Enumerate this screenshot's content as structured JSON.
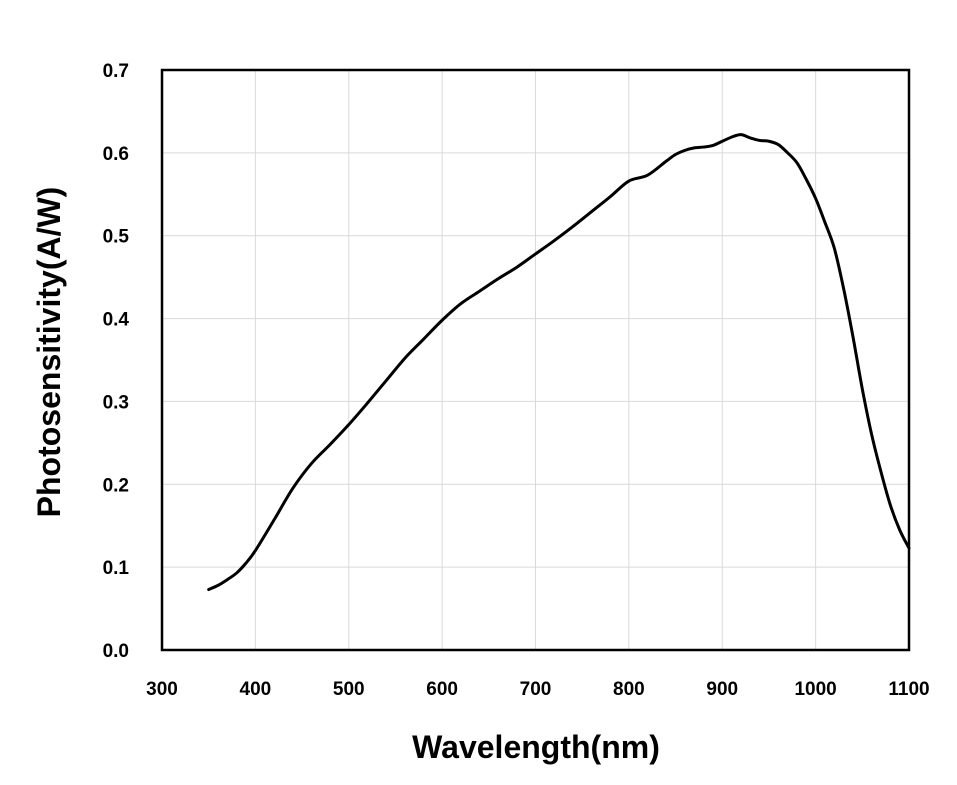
{
  "chart_data": {
    "type": "line",
    "title": "",
    "xlabel": "Wavelength(nm)",
    "ylabel": "Photosensitivity(A/W)",
    "xlim": [
      300,
      1100
    ],
    "ylim": [
      0.0,
      0.7
    ],
    "x_ticks": [
      "300",
      "400",
      "500",
      "600",
      "700",
      "800",
      "900",
      "1000",
      "1100"
    ],
    "y_ticks": [
      "0.0",
      "0.1",
      "0.2",
      "0.3",
      "0.4",
      "0.5",
      "0.6",
      "0.7"
    ],
    "grid": true,
    "legend": "none",
    "line_color": "#000000",
    "series": [
      {
        "x": [
          350,
          360,
          370,
          380,
          390,
          400,
          420,
          440,
          460,
          480,
          500,
          520,
          540,
          560,
          580,
          600,
          620,
          640,
          660,
          680,
          700,
          720,
          740,
          760,
          780,
          800,
          820,
          840,
          850,
          860,
          870,
          880,
          890,
          900,
          910,
          920,
          930,
          940,
          950,
          960,
          970,
          980,
          990,
          1000,
          1010,
          1020,
          1030,
          1040,
          1050,
          1060,
          1070,
          1080,
          1090,
          1100
        ],
        "y": [
          0.073,
          0.078,
          0.085,
          0.093,
          0.105,
          0.12,
          0.157,
          0.195,
          0.225,
          0.248,
          0.272,
          0.298,
          0.325,
          0.352,
          0.375,
          0.398,
          0.418,
          0.433,
          0.448,
          0.462,
          0.478,
          0.494,
          0.511,
          0.529,
          0.547,
          0.566,
          0.573,
          0.59,
          0.598,
          0.603,
          0.606,
          0.607,
          0.609,
          0.614,
          0.619,
          0.622,
          0.618,
          0.615,
          0.614,
          0.61,
          0.6,
          0.588,
          0.568,
          0.545,
          0.516,
          0.485,
          0.436,
          0.378,
          0.315,
          0.26,
          0.215,
          0.175,
          0.145,
          0.123
        ]
      }
    ]
  }
}
